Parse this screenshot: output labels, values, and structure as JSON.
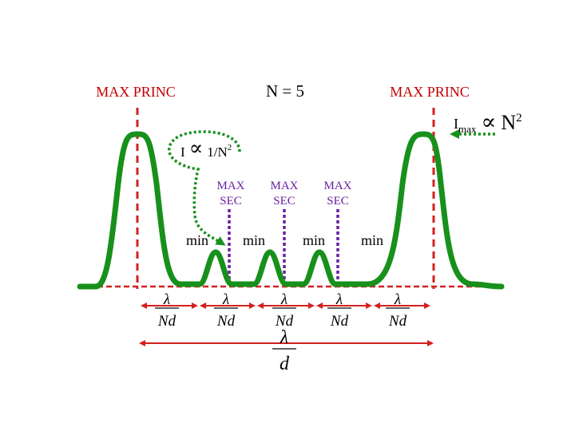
{
  "title": "N = 5",
  "labels": {
    "max_princ_left": "MAX PRINC",
    "max_princ_right": "MAX PRINC",
    "imax_I": "I",
    "imax_sub": "max",
    "imax_prop": "∝",
    "imax_N": "N",
    "imax_exp": "2",
    "i_sec_I": "I",
    "i_sec_prop": "∝",
    "i_sec_rhs": "1/N",
    "i_sec_exp": "2",
    "max_sec": [
      {
        "line1": "MAX",
        "line2": "SEC"
      },
      {
        "line1": "MAX",
        "line2": "SEC"
      },
      {
        "line1": "MAX",
        "line2": "SEC"
      }
    ],
    "min": [
      "min",
      "min",
      "min",
      "min"
    ]
  },
  "fractions": [
    {
      "num": "λ",
      "den": "Nd"
    },
    {
      "num": "λ",
      "den": "Nd"
    },
    {
      "num": "λ",
      "den": "Nd"
    },
    {
      "num": "λ",
      "den": "Nd"
    },
    {
      "num": "λ",
      "den": "Nd"
    }
  ],
  "big_fraction": {
    "num": "λ",
    "den": "d"
  },
  "colors": {
    "curve": "#17901c",
    "principal": "#d42020",
    "secondary": "#6a1fa0",
    "text_red": "#c00000",
    "text_purple": "#6a1fa0",
    "text_black": "#000000"
  }
}
